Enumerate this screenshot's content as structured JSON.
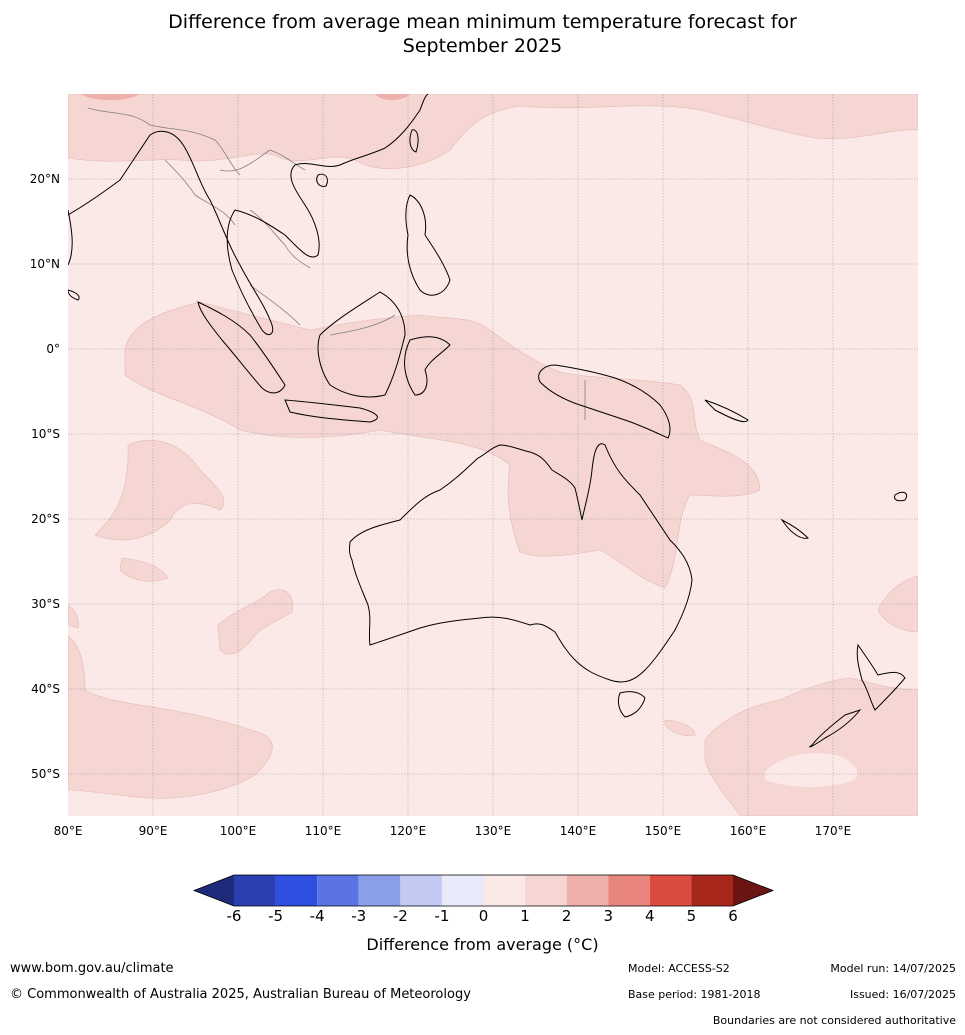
{
  "title": {
    "line1": "Difference from average mean minimum temperature forecast for",
    "line2": "September 2025"
  },
  "map": {
    "background_color": "#fbe9e7",
    "anomaly_fill_color": "#f5d6d3",
    "anomaly_strong_color": "#eeb0aa",
    "land_border_color": "#000000",
    "grid_color": "#999999",
    "lat_labels": [
      "20°N",
      "10°N",
      "0°",
      "10°S",
      "20°S",
      "30°S",
      "40°S",
      "50°S"
    ],
    "lon_labels": [
      "80°E",
      "90°E",
      "100°E",
      "110°E",
      "120°E",
      "130°E",
      "140°E",
      "150°E",
      "160°E",
      "170°E"
    ]
  },
  "colorbar": {
    "colors": [
      "#1e2a7a",
      "#2a3fb0",
      "#2f4fe0",
      "#5b74e4",
      "#8a9ee9",
      "#c2c9f2",
      "#e8eaf9",
      "#fbe9e7",
      "#f5d6d3",
      "#eeb0aa",
      "#e8867e",
      "#dc4b3f",
      "#a8271d",
      "#6a1414"
    ],
    "labels": [
      "-6",
      "-5",
      "-4",
      "-3",
      "-2",
      "-1",
      "0",
      "1",
      "2",
      "3",
      "4",
      "5",
      "6"
    ],
    "title": "Difference from average (°C)"
  },
  "footer": {
    "website": "www.bom.gov.au/climate",
    "copyright": "© Commonwealth of Australia 2025, Australian Bureau of Meteorology",
    "model": "Model: ACCESS-S2",
    "base_period": "Base period: 1981-2018",
    "model_run": "Model run: 14/07/2025",
    "issued": "Issued: 16/07/2025",
    "disclaimer": "Boundaries are not considered authoritative"
  }
}
